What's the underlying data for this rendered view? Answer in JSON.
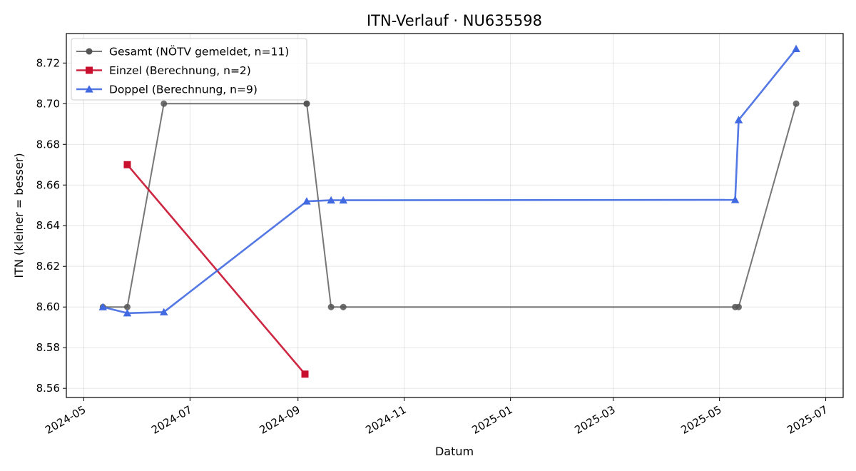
{
  "chart_data": {
    "type": "line",
    "title": "ITN-Verlauf · NU635598",
    "xlabel": "Datum",
    "ylabel": "ITN  (kleiner = besser)",
    "x_ticks": [
      "2024-05",
      "2024-07",
      "2024-09",
      "2024-11",
      "2025-01",
      "2025-03",
      "2025-05",
      "2025-07"
    ],
    "y_ticks": [
      "8.56",
      "8.58",
      "8.60",
      "8.62",
      "8.64",
      "8.66",
      "8.68",
      "8.70",
      "8.72"
    ],
    "xlim": [
      "2024-04-21",
      "2025-07-11"
    ],
    "ylim": [
      8.5555,
      8.7345
    ],
    "grid": true,
    "legend_position": "top-left",
    "series": [
      {
        "name": "Gesamt (NÖTV gemeldet, n=11)",
        "color": "#555555",
        "marker": "circle",
        "points": [
          [
            "2024-05-12",
            8.6
          ],
          [
            "2024-05-26",
            8.6
          ],
          [
            "2024-06-16",
            8.7
          ],
          [
            "2024-09-06",
            8.7
          ],
          [
            "2024-09-06",
            8.7
          ],
          [
            "2024-09-20",
            8.6
          ],
          [
            "2024-09-27",
            8.6
          ],
          [
            "2025-05-10",
            8.6
          ],
          [
            "2025-05-12",
            8.6
          ],
          [
            "2025-06-14",
            8.7
          ]
        ]
      },
      {
        "name": "Einzel (Berechnung, n=2)",
        "color": "#c8102e",
        "marker": "square",
        "points": [
          [
            "2024-05-26",
            8.67
          ],
          [
            "2024-09-05",
            8.567
          ]
        ]
      },
      {
        "name": "Doppel (Berechnung, n=9)",
        "color": "#4169e1",
        "marker": "triangle",
        "points": [
          [
            "2024-05-12",
            8.6
          ],
          [
            "2024-05-26",
            8.597
          ],
          [
            "2024-06-16",
            8.5975
          ],
          [
            "2024-09-06",
            8.652
          ],
          [
            "2024-09-20",
            8.6525
          ],
          [
            "2024-09-27",
            8.6525
          ],
          [
            "2025-05-10",
            8.6527
          ],
          [
            "2025-05-12",
            8.692
          ],
          [
            "2025-06-14",
            8.727
          ]
        ]
      }
    ]
  }
}
